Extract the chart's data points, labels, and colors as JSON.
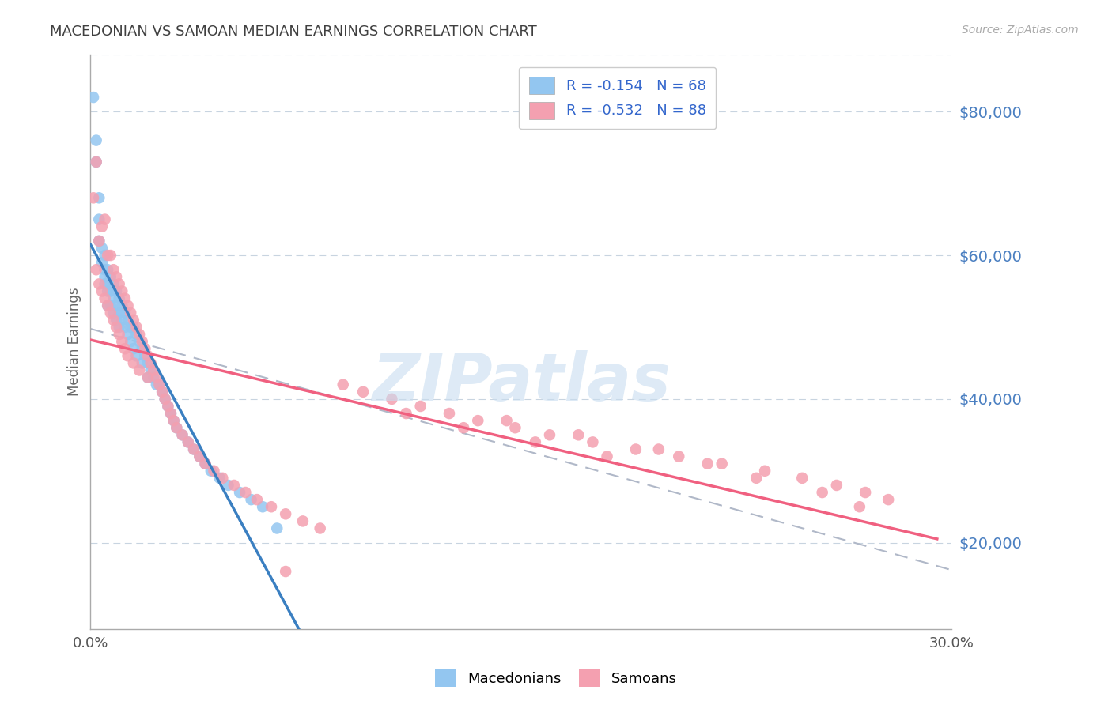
{
  "title": "MACEDONIAN VS SAMOAN MEDIAN EARNINGS CORRELATION CHART",
  "source": "Source: ZipAtlas.com",
  "ylabel": "Median Earnings",
  "right_ytick_labels": [
    "$20,000",
    "$40,000",
    "$60,000",
    "$80,000"
  ],
  "right_ytick_values": [
    20000,
    40000,
    60000,
    80000
  ],
  "ylim": [
    8000,
    88000
  ],
  "xlim": [
    0.0,
    0.3
  ],
  "legend_macedonians": "R = -0.154   N = 68",
  "legend_samoans": "R = -0.532   N = 88",
  "watermark": "ZIPatlas",
  "color_macedonian": "#93c6f0",
  "color_samoan": "#f4a0b0",
  "color_blue_line": "#3a7fc1",
  "color_pink_line": "#f06080",
  "color_dashed": "#b0b8c8",
  "color_title": "#404040",
  "color_right_labels": "#4a7fc1",
  "background": "#ffffff",
  "macedonian_x": [
    0.001,
    0.002,
    0.002,
    0.003,
    0.003,
    0.003,
    0.004,
    0.004,
    0.005,
    0.005,
    0.005,
    0.005,
    0.006,
    0.006,
    0.006,
    0.006,
    0.007,
    0.007,
    0.007,
    0.008,
    0.008,
    0.008,
    0.009,
    0.009,
    0.009,
    0.01,
    0.01,
    0.01,
    0.011,
    0.011,
    0.012,
    0.012,
    0.013,
    0.013,
    0.014,
    0.014,
    0.015,
    0.015,
    0.016,
    0.016,
    0.017,
    0.018,
    0.018,
    0.019,
    0.02,
    0.02,
    0.021,
    0.022,
    0.023,
    0.024,
    0.025,
    0.026,
    0.027,
    0.028,
    0.029,
    0.03,
    0.032,
    0.034,
    0.036,
    0.038,
    0.04,
    0.042,
    0.045,
    0.048,
    0.052,
    0.056,
    0.06,
    0.065
  ],
  "macedonian_y": [
    82000,
    76000,
    73000,
    68000,
    65000,
    62000,
    61000,
    59000,
    60000,
    58000,
    57000,
    56000,
    58000,
    56000,
    55000,
    53000,
    57000,
    55000,
    53000,
    56000,
    54000,
    52000,
    55000,
    53000,
    51000,
    54000,
    52000,
    50000,
    53000,
    51000,
    52000,
    50000,
    51000,
    49000,
    50000,
    48000,
    50000,
    47000,
    49000,
    46000,
    48000,
    47000,
    45000,
    46000,
    45000,
    43000,
    44000,
    43000,
    42000,
    42000,
    41000,
    40000,
    39000,
    38000,
    37000,
    36000,
    35000,
    34000,
    33000,
    32000,
    31000,
    30000,
    29000,
    28000,
    27000,
    26000,
    25000,
    22000
  ],
  "samoan_x": [
    0.001,
    0.002,
    0.002,
    0.003,
    0.003,
    0.004,
    0.004,
    0.005,
    0.005,
    0.006,
    0.006,
    0.007,
    0.007,
    0.008,
    0.008,
    0.009,
    0.009,
    0.01,
    0.01,
    0.011,
    0.011,
    0.012,
    0.012,
    0.013,
    0.013,
    0.014,
    0.015,
    0.015,
    0.016,
    0.017,
    0.017,
    0.018,
    0.019,
    0.02,
    0.02,
    0.021,
    0.022,
    0.023,
    0.024,
    0.025,
    0.026,
    0.027,
    0.028,
    0.029,
    0.03,
    0.032,
    0.034,
    0.036,
    0.038,
    0.04,
    0.043,
    0.046,
    0.05,
    0.054,
    0.058,
    0.063,
    0.068,
    0.074,
    0.08,
    0.088,
    0.095,
    0.105,
    0.115,
    0.125,
    0.135,
    0.148,
    0.16,
    0.175,
    0.19,
    0.205,
    0.22,
    0.235,
    0.248,
    0.26,
    0.27,
    0.278,
    0.145,
    0.17,
    0.198,
    0.215,
    0.232,
    0.255,
    0.268,
    0.11,
    0.13,
    0.155,
    0.18,
    0.068
  ],
  "samoan_y": [
    68000,
    73000,
    58000,
    62000,
    56000,
    64000,
    55000,
    65000,
    54000,
    60000,
    53000,
    60000,
    52000,
    58000,
    51000,
    57000,
    50000,
    56000,
    49000,
    55000,
    48000,
    54000,
    47000,
    53000,
    46000,
    52000,
    51000,
    45000,
    50000,
    49000,
    44000,
    48000,
    47000,
    46000,
    43000,
    45000,
    44000,
    43000,
    42000,
    41000,
    40000,
    39000,
    38000,
    37000,
    36000,
    35000,
    34000,
    33000,
    32000,
    31000,
    30000,
    29000,
    28000,
    27000,
    26000,
    25000,
    24000,
    23000,
    22000,
    42000,
    41000,
    40000,
    39000,
    38000,
    37000,
    36000,
    35000,
    34000,
    33000,
    32000,
    31000,
    30000,
    29000,
    28000,
    27000,
    26000,
    37000,
    35000,
    33000,
    31000,
    29000,
    27000,
    25000,
    38000,
    36000,
    34000,
    32000,
    16000
  ]
}
